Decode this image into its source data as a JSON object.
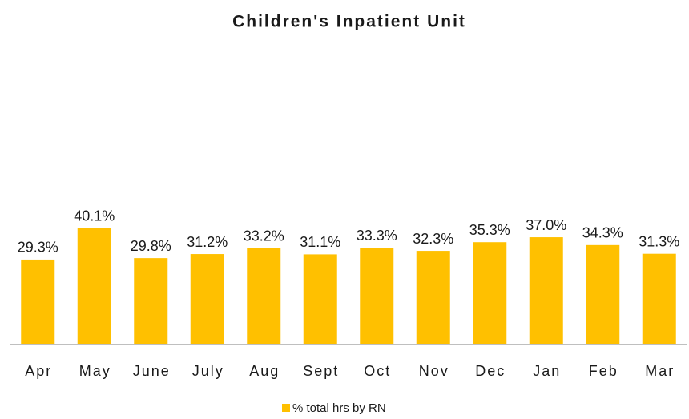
{
  "chart_data": {
    "type": "bar",
    "title": "Children's Inpatient Unit",
    "categories": [
      "Apr",
      "May",
      "June",
      "July",
      "Aug",
      "Sept",
      "Oct",
      "Nov",
      "Dec",
      "Jan",
      "Feb",
      "Mar"
    ],
    "series": [
      {
        "name": "% total hrs by RN",
        "color": "#ffc000",
        "values": [
          29.3,
          40.1,
          29.8,
          31.2,
          33.2,
          31.1,
          33.3,
          32.3,
          35.3,
          37.0,
          34.3,
          31.3
        ],
        "value_labels": [
          "29.3%",
          "40.1%",
          "29.8%",
          "31.2%",
          "33.2%",
          "31.1%",
          "33.3%",
          "32.3%",
          "35.3%",
          "37.0%",
          "34.3%",
          "31.3%"
        ]
      }
    ],
    "ylim": [
      0,
      100
    ],
    "legend": "bottom"
  }
}
